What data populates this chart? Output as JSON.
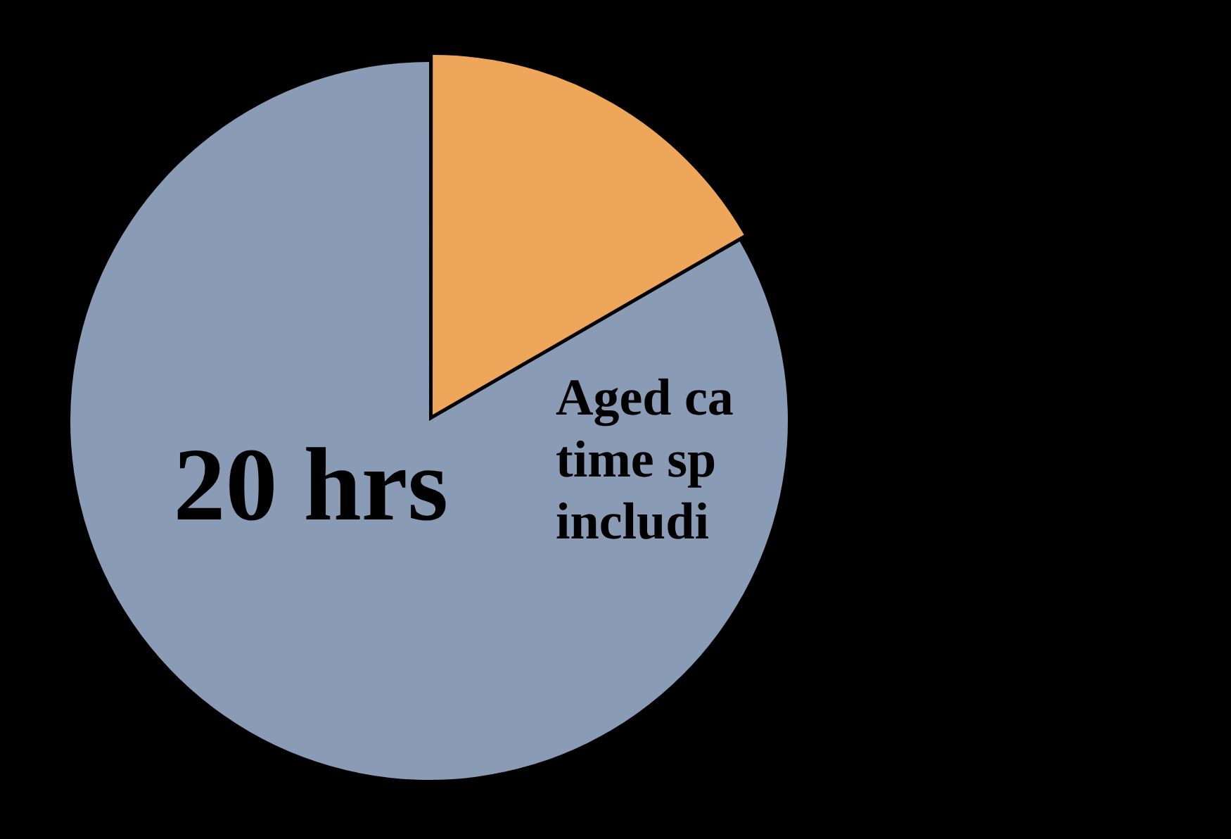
{
  "chart_data": {
    "type": "pie",
    "categories": [
      null,
      null
    ],
    "values": [
      4,
      20
    ],
    "colors": [
      "#eda65a",
      "#8a9bb5"
    ],
    "value_labels": [
      null,
      "20 hrs"
    ],
    "annotations": [
      "Aged ca\ntime sp\nincludi"
    ]
  }
}
